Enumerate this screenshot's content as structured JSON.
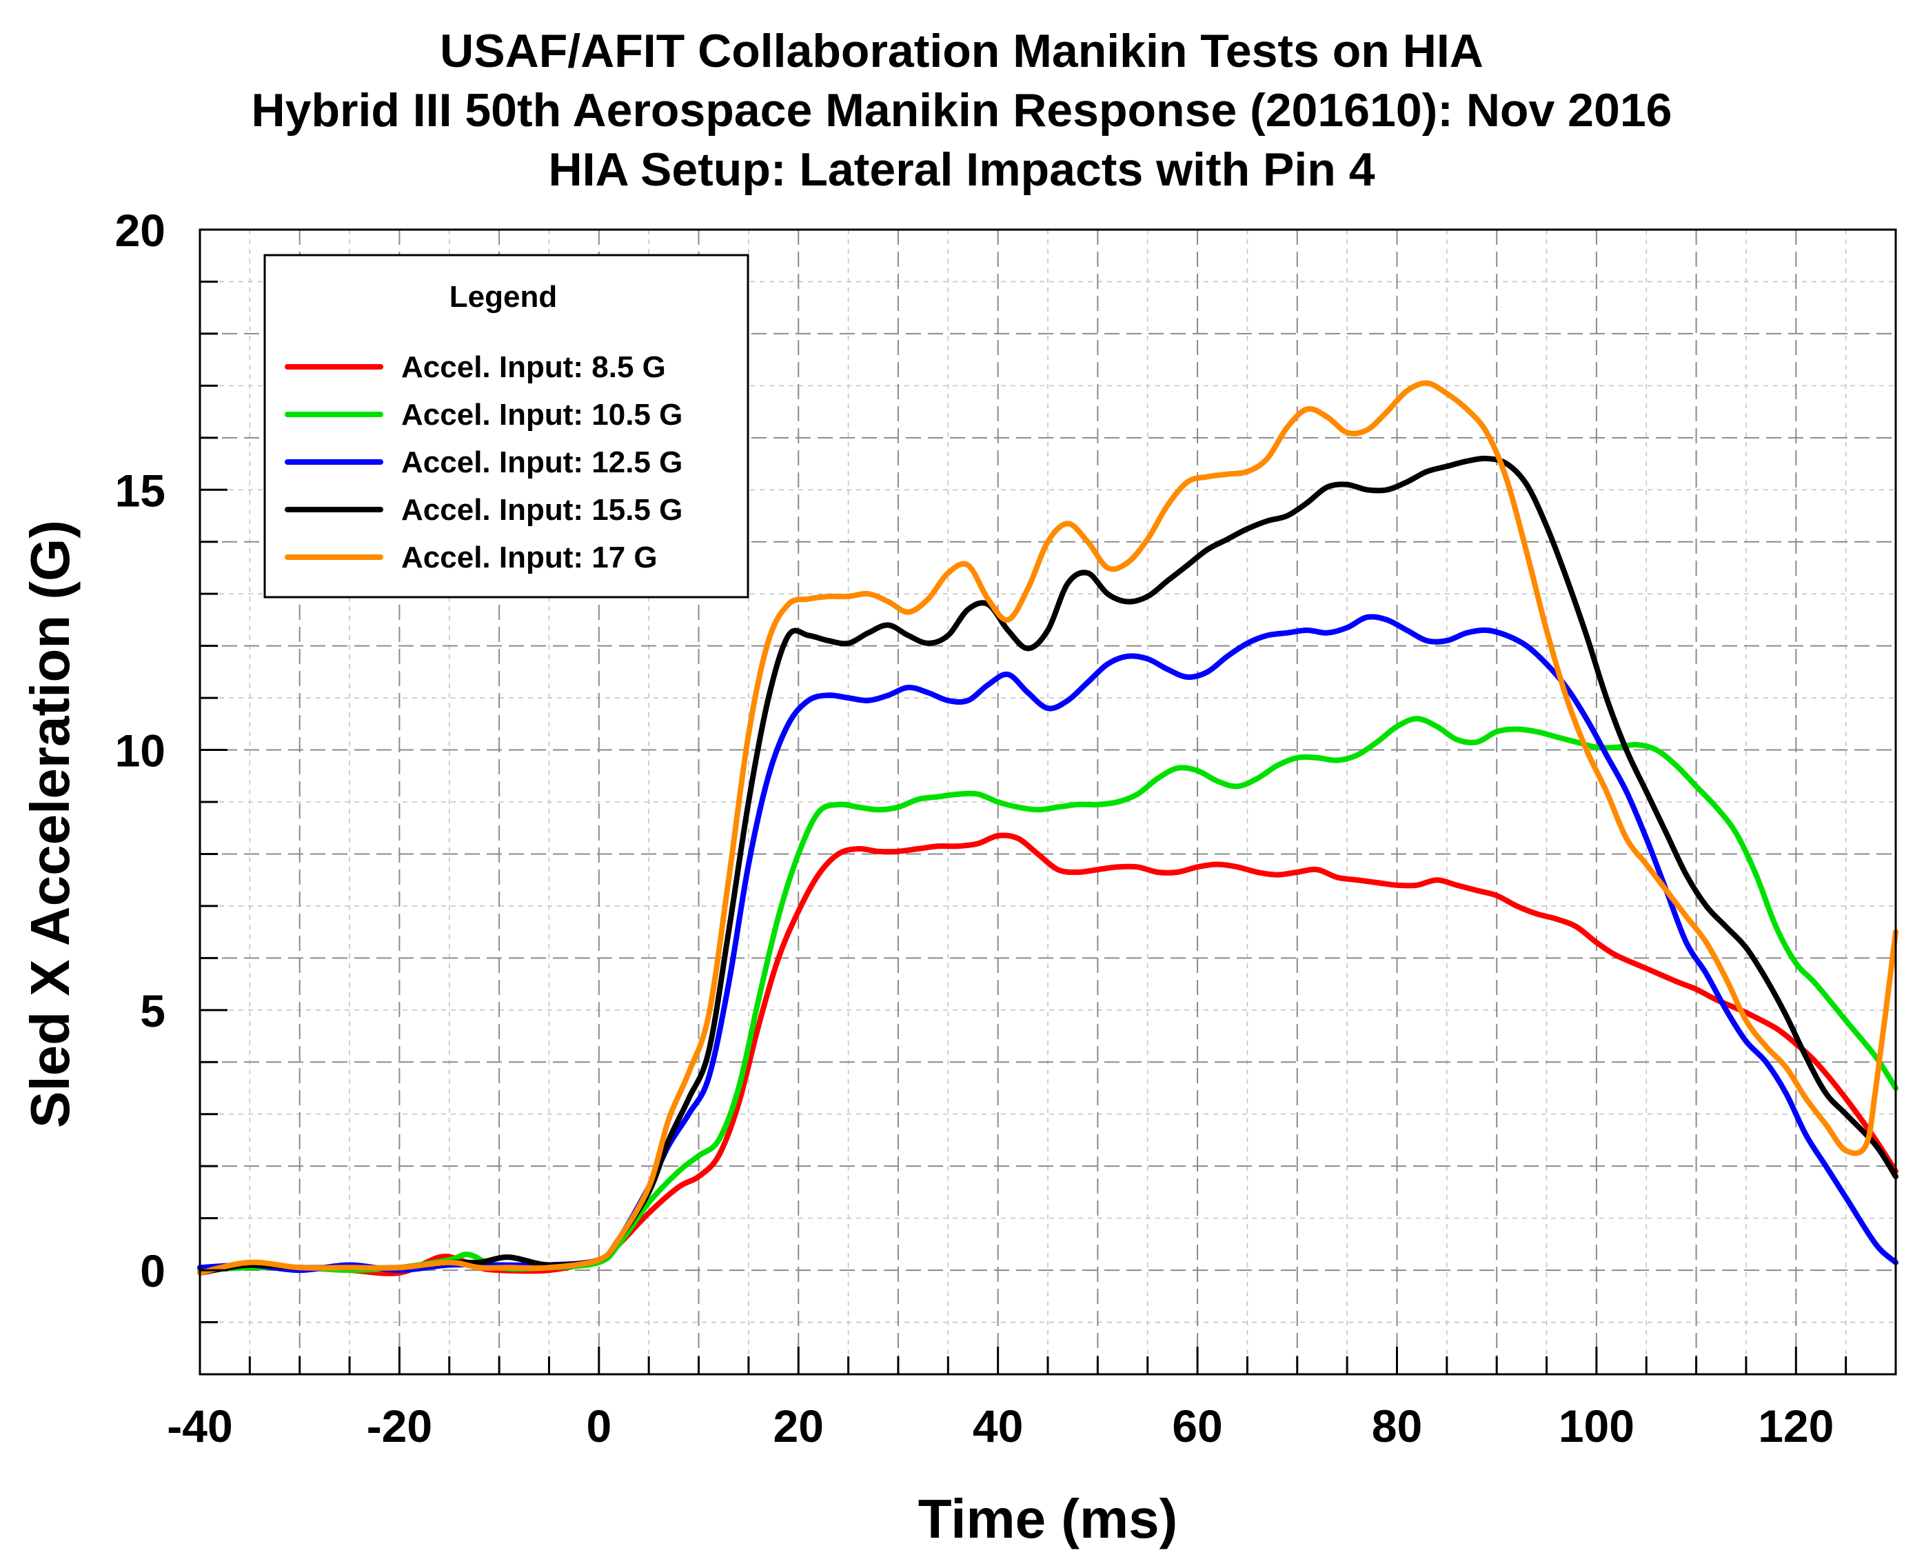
{
  "chart_data": {
    "type": "line",
    "title": [
      "USAF/AFIT Collaboration Manikin Tests on HIA",
      "Hybrid III 50th Aerospace Manikin Response (201610): Nov 2016",
      "HIA Setup:  Lateral Impacts with Pin 4"
    ],
    "xlabel": "Time  (ms)",
    "ylabel": "Sled X Acceleration  (G)",
    "xlim": [
      -40,
      130
    ],
    "ylim": [
      -2,
      20
    ],
    "xticks": [
      -40,
      -20,
      0,
      20,
      40,
      60,
      80,
      100,
      120
    ],
    "yticks": [
      0,
      5,
      10,
      15,
      20
    ],
    "xtick_labels": [
      "-40",
      "-20",
      "0",
      "20",
      "40",
      "60",
      "80",
      "100",
      "120"
    ],
    "ytick_labels": [
      "0",
      "5",
      "10",
      "15",
      "20"
    ],
    "grid": true,
    "legend": {
      "title": "Legend",
      "position": "top-left"
    },
    "series": [
      {
        "name": "Accel. Input: 8.5 G",
        "color": "#ff0000",
        "x": [
          -40,
          -35,
          -30,
          -25,
          -20,
          -16,
          -14,
          -12,
          -10,
          -5,
          0,
          2,
          5,
          8,
          10,
          12,
          14,
          16,
          18,
          20,
          22,
          24,
          26,
          28,
          30,
          32,
          34,
          36,
          38,
          40,
          42,
          44,
          46,
          48,
          50,
          52,
          54,
          56,
          58,
          60,
          62,
          64,
          66,
          68,
          70,
          72,
          74,
          76,
          78,
          80,
          82,
          84,
          86,
          88,
          90,
          92,
          94,
          96,
          98,
          100,
          102,
          105,
          108,
          110,
          112,
          115,
          118,
          120,
          122,
          125,
          128,
          130
        ],
        "y": [
          0.05,
          0.05,
          0.05,
          0.0,
          -0.05,
          0.25,
          0.2,
          0.05,
          0.0,
          0.0,
          0.2,
          0.5,
          1.1,
          1.6,
          1.8,
          2.2,
          3.2,
          4.7,
          6.0,
          6.9,
          7.6,
          8.0,
          8.1,
          8.05,
          8.05,
          8.1,
          8.15,
          8.15,
          8.2,
          8.35,
          8.3,
          8.0,
          7.7,
          7.65,
          7.7,
          7.75,
          7.75,
          7.65,
          7.65,
          7.75,
          7.8,
          7.75,
          7.65,
          7.6,
          7.65,
          7.7,
          7.55,
          7.5,
          7.45,
          7.4,
          7.4,
          7.5,
          7.4,
          7.3,
          7.2,
          7.0,
          6.85,
          6.75,
          6.6,
          6.3,
          6.05,
          5.8,
          5.55,
          5.4,
          5.2,
          4.95,
          4.65,
          4.35,
          4.0,
          3.3,
          2.5,
          1.9
        ]
      },
      {
        "name": "Accel. Input: 10.5 G",
        "color": "#00e000",
        "x": [
          -40,
          -35,
          -30,
          -25,
          -20,
          -15,
          -13,
          -10,
          -5,
          0,
          2,
          5,
          8,
          10,
          12,
          14,
          16,
          18,
          20,
          22,
          24,
          26,
          28,
          30,
          32,
          34,
          36,
          38,
          40,
          42,
          44,
          46,
          48,
          50,
          52,
          54,
          56,
          58,
          60,
          62,
          64,
          66,
          68,
          70,
          72,
          74,
          76,
          78,
          80,
          82,
          84,
          86,
          88,
          90,
          92,
          94,
          96,
          98,
          100,
          102,
          104,
          106,
          108,
          110,
          112,
          114,
          116,
          118,
          120,
          122,
          125,
          128,
          130
        ],
        "y": [
          0.0,
          0.05,
          0.05,
          0.0,
          0.05,
          0.2,
          0.3,
          0.05,
          0.05,
          0.15,
          0.5,
          1.3,
          1.9,
          2.2,
          2.5,
          3.5,
          5.2,
          6.8,
          8.0,
          8.8,
          8.95,
          8.9,
          8.85,
          8.9,
          9.05,
          9.1,
          9.15,
          9.15,
          9.0,
          8.9,
          8.85,
          8.9,
          8.95,
          8.95,
          9.0,
          9.15,
          9.45,
          9.65,
          9.6,
          9.4,
          9.3,
          9.45,
          9.7,
          9.85,
          9.85,
          9.8,
          9.9,
          10.15,
          10.45,
          10.6,
          10.45,
          10.2,
          10.15,
          10.35,
          10.4,
          10.35,
          10.25,
          10.15,
          10.05,
          10.05,
          10.1,
          10.0,
          9.7,
          9.3,
          8.9,
          8.4,
          7.6,
          6.6,
          5.9,
          5.5,
          4.8,
          4.1,
          3.5
        ]
      },
      {
        "name": "Accel. Input: 12.5 G",
        "color": "#0000ff",
        "x": [
          -40,
          -35,
          -30,
          -25,
          -20,
          -15,
          -10,
          -5,
          0,
          2,
          5,
          7,
          9,
          11,
          13,
          15,
          17,
          19,
          21,
          23,
          25,
          27,
          29,
          31,
          33,
          35,
          37,
          39,
          41,
          43,
          45,
          47,
          49,
          51,
          53,
          55,
          57,
          59,
          61,
          63,
          65,
          67,
          69,
          71,
          73,
          75,
          77,
          79,
          81,
          83,
          85,
          87,
          89,
          91,
          93,
          95,
          97,
          99,
          101,
          103,
          105,
          107,
          109,
          111,
          113,
          115,
          117,
          119,
          121,
          123,
          125,
          128,
          130
        ],
        "y": [
          0.05,
          0.1,
          0.0,
          0.1,
          0.0,
          0.1,
          0.1,
          0.1,
          0.2,
          0.6,
          1.6,
          2.4,
          3.0,
          3.7,
          5.5,
          7.8,
          9.5,
          10.5,
          10.95,
          11.05,
          11.0,
          10.95,
          11.05,
          11.2,
          11.1,
          10.95,
          10.95,
          11.25,
          11.45,
          11.1,
          10.8,
          10.95,
          11.3,
          11.65,
          11.8,
          11.75,
          11.55,
          11.4,
          11.5,
          11.8,
          12.05,
          12.2,
          12.25,
          12.3,
          12.25,
          12.35,
          12.55,
          12.5,
          12.3,
          12.1,
          12.1,
          12.25,
          12.3,
          12.2,
          12.0,
          11.65,
          11.2,
          10.6,
          9.9,
          9.2,
          8.3,
          7.3,
          6.3,
          5.7,
          5.0,
          4.4,
          4.0,
          3.4,
          2.6,
          2.0,
          1.4,
          0.5,
          0.15
        ]
      },
      {
        "name": "Accel. Input: 15.5 G",
        "color": "#000000",
        "x": [
          -40,
          -35,
          -30,
          -25,
          -20,
          -15,
          -12,
          -9,
          -5,
          0,
          2,
          5,
          7,
          9,
          11,
          13,
          15,
          17,
          19,
          21,
          23,
          25,
          27,
          29,
          31,
          33,
          35,
          37,
          39,
          41,
          43,
          45,
          47,
          49,
          51,
          53,
          55,
          57,
          59,
          61,
          63,
          65,
          67,
          69,
          71,
          73,
          75,
          77,
          79,
          81,
          83,
          85,
          87,
          89,
          91,
          93,
          95,
          97,
          99,
          101,
          103,
          105,
          107,
          109,
          111,
          113,
          115,
          117,
          119,
          121,
          123,
          125,
          128,
          130
        ],
        "y": [
          -0.05,
          0.1,
          0.05,
          0.05,
          0.05,
          0.15,
          0.15,
          0.25,
          0.1,
          0.2,
          0.6,
          1.5,
          2.5,
          3.3,
          4.2,
          6.5,
          9.0,
          11.0,
          12.2,
          12.2,
          12.1,
          12.05,
          12.25,
          12.4,
          12.2,
          12.05,
          12.2,
          12.7,
          12.8,
          12.3,
          11.95,
          12.3,
          13.2,
          13.4,
          13.0,
          12.85,
          12.95,
          13.25,
          13.55,
          13.85,
          14.05,
          14.25,
          14.4,
          14.5,
          14.75,
          15.05,
          15.1,
          15.0,
          15.0,
          15.15,
          15.35,
          15.45,
          15.55,
          15.6,
          15.5,
          15.1,
          14.3,
          13.3,
          12.2,
          11.0,
          10.0,
          9.2,
          8.4,
          7.6,
          7.0,
          6.6,
          6.2,
          5.6,
          4.9,
          4.1,
          3.4,
          3.0,
          2.4,
          1.8
        ]
      },
      {
        "name": "Accel. Input: 17 G",
        "color": "#ff8a00",
        "x": [
          -40,
          -35,
          -30,
          -25,
          -20,
          -15,
          -12,
          -9,
          -5,
          0,
          2,
          5,
          7,
          9,
          11,
          13,
          15,
          17,
          19,
          21,
          23,
          25,
          27,
          29,
          31,
          33,
          35,
          37,
          39,
          41,
          43,
          45,
          47,
          49,
          51,
          53,
          55,
          57,
          59,
          61,
          63,
          65,
          67,
          69,
          71,
          73,
          75,
          77,
          79,
          81,
          83,
          85,
          87,
          89,
          91,
          93,
          95,
          97,
          99,
          101,
          103,
          105,
          107,
          109,
          111,
          113,
          115,
          117,
          119,
          121,
          123,
          125,
          127,
          128,
          130
        ],
        "y": [
          -0.05,
          0.15,
          0.05,
          0.05,
          0.05,
          0.15,
          0.05,
          0.05,
          0.05,
          0.2,
          0.6,
          1.6,
          2.9,
          3.8,
          4.9,
          7.5,
          10.3,
          12.1,
          12.8,
          12.9,
          12.95,
          12.95,
          13.0,
          12.85,
          12.65,
          12.9,
          13.4,
          13.55,
          12.9,
          12.5,
          13.1,
          14.0,
          14.35,
          14.0,
          13.5,
          13.6,
          14.05,
          14.7,
          15.15,
          15.25,
          15.3,
          15.35,
          15.6,
          16.2,
          16.55,
          16.4,
          16.1,
          16.15,
          16.5,
          16.9,
          17.05,
          16.85,
          16.55,
          16.1,
          15.2,
          13.8,
          12.3,
          11.0,
          10.0,
          9.2,
          8.3,
          7.8,
          7.3,
          6.8,
          6.3,
          5.6,
          4.8,
          4.3,
          3.9,
          3.3,
          2.8,
          2.3,
          2.4,
          3.5,
          6.5
        ]
      }
    ]
  }
}
